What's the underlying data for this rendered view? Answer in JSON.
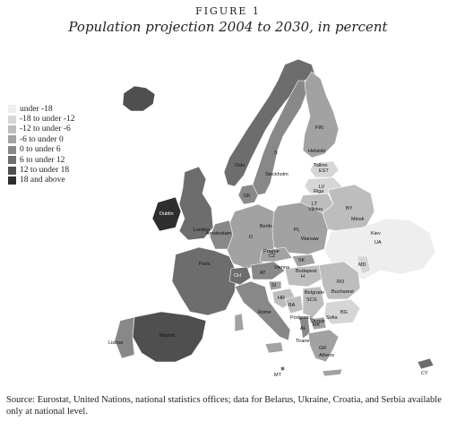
{
  "figure": {
    "label": "FIGURE 1",
    "title": "Population projection 2004 to 2030, in percent"
  },
  "legend": {
    "items": [
      {
        "label": "under -18",
        "color": "#eeeeee"
      },
      {
        "label": "-18 to under -12",
        "color": "#d6d6d6"
      },
      {
        "label": "-12 to under -6",
        "color": "#bdbdbd"
      },
      {
        "label": "-6 to under 0",
        "color": "#a2a2a2"
      },
      {
        "label": "0 to under 6",
        "color": "#888888"
      },
      {
        "label": "6 to under 12",
        "color": "#6d6d6d"
      },
      {
        "label": "12 to under 18",
        "color": "#4f4f4f"
      },
      {
        "label": "18 and above",
        "color": "#2e2e2e"
      }
    ]
  },
  "map_labels": {
    "fin": "FIN",
    "s": "S",
    "est": "EST",
    "lv": "LV",
    "lt": "LT",
    "by": "BY",
    "ua": "UA",
    "pl": "PL",
    "ro": "RO",
    "md": "MD",
    "bg": "BG",
    "gr": "GR",
    "d": "D",
    "dk": "DK",
    "cz": "CZ",
    "sk": "SK",
    "at": "AT",
    "h": "H",
    "ch": "CH",
    "si": "SI",
    "hr": "HR",
    "ba": "BA",
    "cs": "SCG",
    "mk": "MK",
    "al": "AL",
    "mt": "MT",
    "cy": "CY",
    "minsk": "Minsk",
    "kiev": "Kiev",
    "bucharest": "Bucharest",
    "sofia": "Sofia",
    "athens": "Athens",
    "tirane": "Tirane",
    "vilnius": "Vilnius",
    "riga": "Riga",
    "tallinn": "Tallinn",
    "helsinki": "Helsinki",
    "stockholm": "Stockholm",
    "oslo": "Oslo",
    "london": "London",
    "paris": "Paris",
    "madrid": "Madrid",
    "lisboa": "Lisboa",
    "rome": "Rome",
    "berlin": "Berlin",
    "warsaw": "Warsaw",
    "vienna": "Vienna",
    "budapest": "Budapest",
    "prague": "Prague",
    "amsterdam": "Amsterdam",
    "dublin": "Dublin",
    "belgrade": "Belgrade",
    "skopje": "Skopje",
    "podgorica": "Podgorica"
  },
  "source_note": "Source: Eurostat, United Nations, national statistics offices; data for Belarus, Ukraine, Croatia, and Serbia available only at national level."
}
